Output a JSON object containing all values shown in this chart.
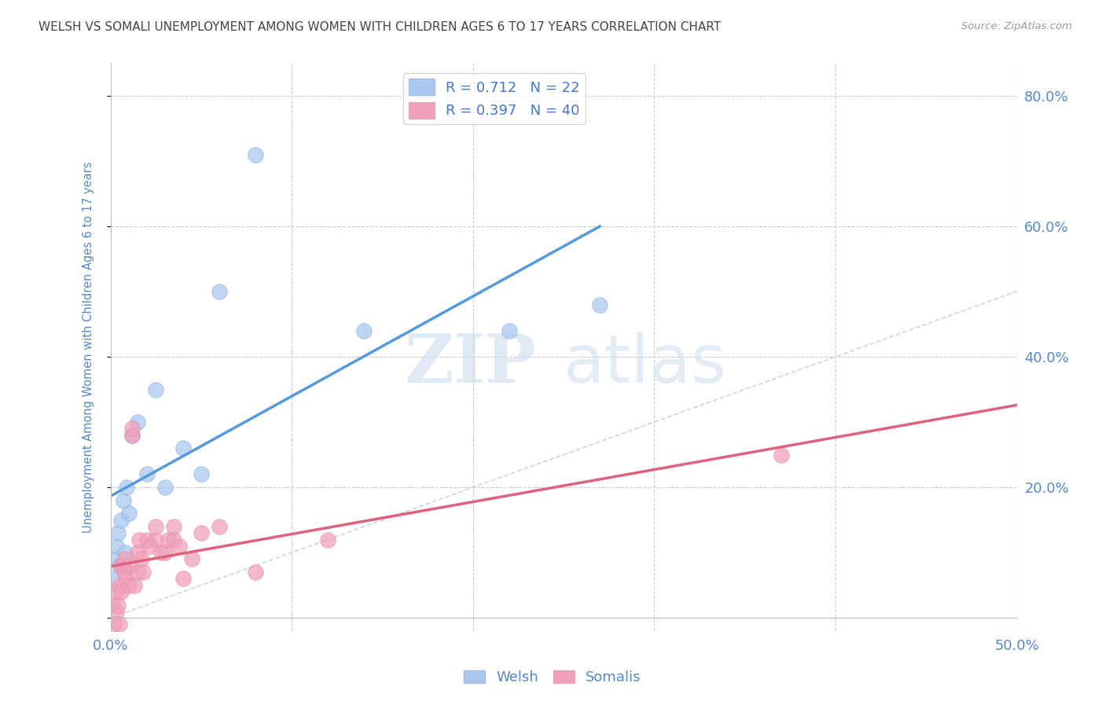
{
  "title": "WELSH VS SOMALI UNEMPLOYMENT AMONG WOMEN WITH CHILDREN AGES 6 TO 17 YEARS CORRELATION CHART",
  "source": "Source: ZipAtlas.com",
  "ylabel": "Unemployment Among Women with Children Ages 6 to 17 years",
  "xlim": [
    0.0,
    0.5
  ],
  "ylim": [
    -0.02,
    0.85
  ],
  "welsh_color": "#a8c8f0",
  "somali_color": "#f0a0b8",
  "welsh_line_color": "#5599dd",
  "somali_line_color": "#e06080",
  "legend_text_color": "#4477cc",
  "R_welsh": 0.712,
  "N_welsh": 22,
  "R_somali": 0.397,
  "N_somali": 40,
  "welsh_x": [
    0.001,
    0.002,
    0.003,
    0.004,
    0.005,
    0.006,
    0.007,
    0.008,
    0.009,
    0.01,
    0.012,
    0.015,
    0.02,
    0.025,
    0.03,
    0.04,
    0.05,
    0.06,
    0.08,
    0.14,
    0.22,
    0.27
  ],
  "welsh_y": [
    0.06,
    0.09,
    0.11,
    0.13,
    0.08,
    0.15,
    0.18,
    0.1,
    0.2,
    0.16,
    0.28,
    0.3,
    0.22,
    0.35,
    0.2,
    0.26,
    0.22,
    0.5,
    0.71,
    0.44,
    0.44,
    0.48
  ],
  "somali_x": [
    0.001,
    0.002,
    0.003,
    0.003,
    0.004,
    0.005,
    0.005,
    0.006,
    0.006,
    0.007,
    0.008,
    0.008,
    0.009,
    0.01,
    0.01,
    0.012,
    0.012,
    0.013,
    0.015,
    0.015,
    0.016,
    0.017,
    0.018,
    0.02,
    0.022,
    0.025,
    0.025,
    0.028,
    0.03,
    0.032,
    0.035,
    0.035,
    0.038,
    0.04,
    0.045,
    0.05,
    0.06,
    0.08,
    0.12,
    0.37
  ],
  "somali_y": [
    0.02,
    -0.01,
    0.01,
    0.04,
    0.02,
    0.05,
    -0.01,
    0.08,
    0.04,
    0.08,
    0.07,
    0.09,
    0.06,
    0.05,
    0.08,
    0.28,
    0.29,
    0.05,
    0.1,
    0.07,
    0.12,
    0.09,
    0.07,
    0.12,
    0.11,
    0.12,
    0.14,
    0.1,
    0.1,
    0.12,
    0.12,
    0.14,
    0.11,
    0.06,
    0.09,
    0.13,
    0.14,
    0.07,
    0.12,
    0.25
  ],
  "watermark_zip": "ZIP",
  "watermark_atlas": "atlas",
  "background_color": "#ffffff",
  "grid_color": "#cccccc",
  "axis_label_color": "#5588cc",
  "title_color": "#444444"
}
